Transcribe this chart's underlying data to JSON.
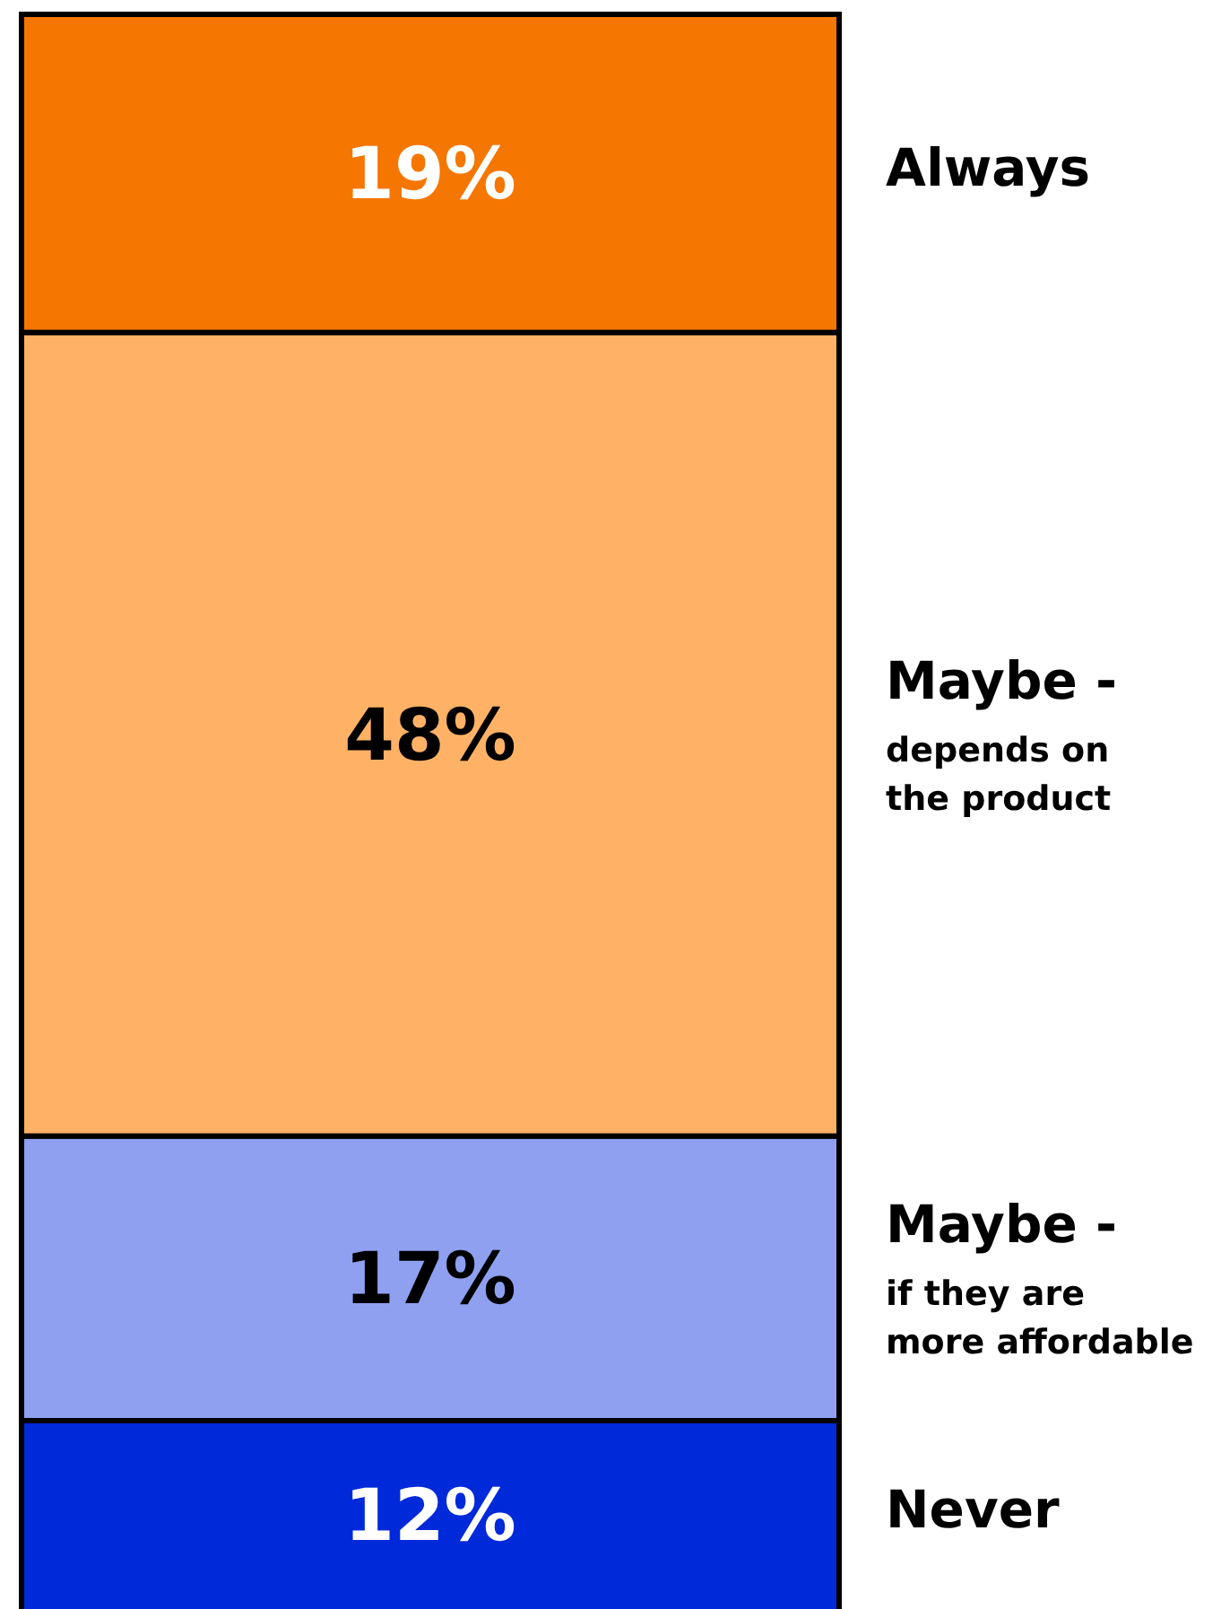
{
  "chart_data": {
    "type": "bar",
    "stacked": true,
    "categories": [
      null
    ],
    "series": [
      {
        "name": "Never",
        "color": "#0029d9",
        "values": [
          12
        ],
        "value_labels": [
          "12%"
        ]
      },
      {
        "name": "Maybe -\nif they are\nmore affordable",
        "color": "#8fa0f0",
        "values": [
          17
        ],
        "value_labels": [
          "17%"
        ]
      },
      {
        "name": "Maybe -\ndepends on\nthe product",
        "color": "#ffb266",
        "values": [
          48
        ],
        "value_labels": [
          "48%"
        ]
      },
      {
        "name": "Always",
        "color": "#f57600",
        "values": [
          19
        ],
        "value_labels": [
          "19%"
        ]
      }
    ]
  }
}
